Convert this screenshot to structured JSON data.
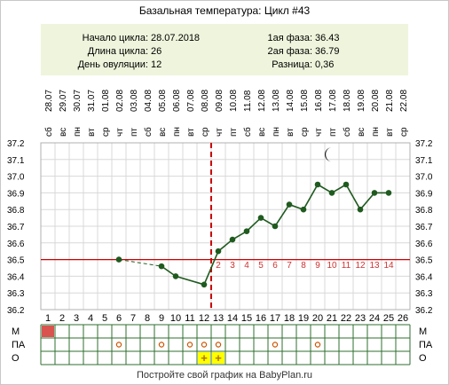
{
  "header": {
    "title": "Базальная температура: Цикл #43"
  },
  "summary": {
    "left": [
      {
        "label": "Начало цикла:",
        "value": "28.07.2018"
      },
      {
        "label": "Длина цикла:",
        "value": "26"
      },
      {
        "label": "День овуляции:",
        "value": "12"
      }
    ],
    "right": [
      {
        "label": "1ая фаза:",
        "value": "36.43"
      },
      {
        "label": "2ая фаза:",
        "value": "36.79"
      },
      {
        "label": "Разница:",
        "value": "0,36"
      }
    ]
  },
  "footer": {
    "text": "Постройте свой график на BabyPlan.ru"
  },
  "row_labels": [
    "М",
    "ПА",
    "О"
  ],
  "colors": {
    "line": "#1f5a1f",
    "cover_line": "#cc0000",
    "ovulation_line": "#cc0000",
    "phase2_numbers": "#cc3333",
    "summary_bg": "#eef5dc",
    "grid": "#d8d8d8",
    "menstruation": "#d9534f",
    "intercourse": "#cc5500",
    "ovulation_test": "#ffff00"
  },
  "icons": {
    "moon": "moon-icon"
  },
  "chart_data": {
    "type": "line",
    "title": "Базальная температура: Цикл #43",
    "ylim": [
      36.2,
      37.2
    ],
    "yticks": [
      "37.2",
      "37.1",
      "37.0",
      "36.9",
      "36.8",
      "36.7",
      "36.6",
      "36.5",
      "36.4",
      "36.3",
      "36.2"
    ],
    "grid": true,
    "cover_line": 36.5,
    "ovulation_day": 12,
    "days": [
      1,
      2,
      3,
      4,
      5,
      6,
      7,
      8,
      9,
      10,
      11,
      12,
      13,
      14,
      15,
      16,
      17,
      18,
      19,
      20,
      21,
      22,
      23,
      24,
      25,
      26
    ],
    "weekdays": [
      "сб",
      "вс",
      "пн",
      "вт",
      "ср",
      "чт",
      "пт",
      "сб",
      "вс",
      "пн",
      "вт",
      "ср",
      "чт",
      "пт",
      "сб",
      "вс",
      "пн",
      "вт",
      "ср",
      "чт",
      "пт",
      "сб",
      "вс",
      "пн",
      "вт",
      "ср"
    ],
    "dates": [
      "28.07",
      "29.07",
      "30.07",
      "31.07",
      "01.08",
      "02.08",
      "03.08",
      "04.08",
      "05.08",
      "06.08",
      "07.08",
      "08.08",
      "09.08",
      "10.08",
      "11.08",
      "12.08",
      "13.08",
      "14.08",
      "15.08",
      "16.08",
      "17.08",
      "18.08",
      "19.08",
      "20.08",
      "21.08",
      "22.08"
    ],
    "temperatures": [
      null,
      null,
      null,
      null,
      null,
      36.5,
      null,
      null,
      36.46,
      36.4,
      null,
      36.35,
      36.55,
      36.62,
      36.67,
      36.75,
      36.7,
      36.83,
      36.8,
      36.95,
      36.9,
      36.95,
      36.8,
      36.9,
      36.9,
      null
    ],
    "dashed_segments": [
      [
        6,
        9
      ],
      [
        11,
        13
      ]
    ],
    "phase2_day_numbers": [
      2,
      3,
      4,
      5,
      6,
      7,
      8,
      9,
      10,
      11,
      12,
      13,
      14
    ],
    "phase2_start_day": 13,
    "moon_day": 21,
    "moon_value": 37.13,
    "rows": {
      "М": [
        1
      ],
      "ПА": [
        6,
        9,
        11,
        12,
        13,
        17,
        20
      ],
      "О": [
        12,
        13
      ]
    },
    "ovulation_test_mark": "+"
  }
}
